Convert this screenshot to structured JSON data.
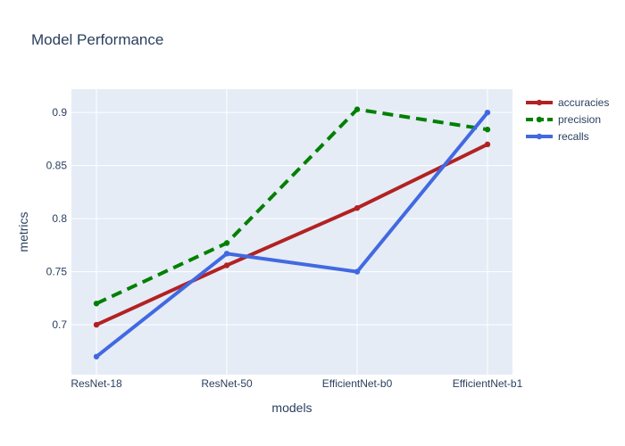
{
  "chart_data": {
    "type": "line",
    "title": "Model Performance",
    "xlabel": "models",
    "ylabel": "metrics",
    "categories": [
      "ResNet-18",
      "ResNet-50",
      "EfficientNet-b0",
      "EfficientNet-b1"
    ],
    "ylim": [
      0.653,
      0.922
    ],
    "yticks": [
      0.7,
      0.75,
      0.8,
      0.85,
      0.9
    ],
    "ytick_labels": [
      "0.7",
      "0.75",
      "0.8",
      "0.85",
      "0.9"
    ],
    "grid": true,
    "legend_position": "top-right",
    "plot_background": "#e5ecf6",
    "series": [
      {
        "name": "accuracies",
        "values": [
          0.7,
          0.756,
          0.81,
          0.87
        ],
        "color": "#b22222",
        "dash": "solid"
      },
      {
        "name": "precision",
        "values": [
          0.72,
          0.777,
          0.903,
          0.884
        ],
        "color": "#008000",
        "dash": "dash"
      },
      {
        "name": "recalls",
        "values": [
          0.67,
          0.767,
          0.75,
          0.9
        ],
        "color": "#4169e1",
        "dash": "solid"
      }
    ]
  }
}
